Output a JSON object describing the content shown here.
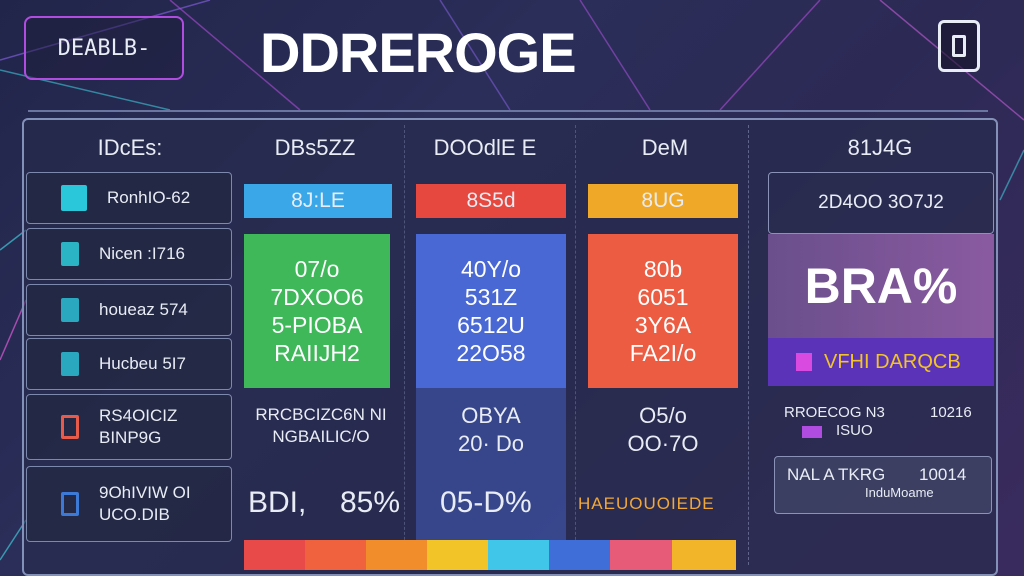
{
  "app": {
    "title": "DDREROGE",
    "top_left_button": "DEABLB-"
  },
  "table": {
    "columns": [
      "IDcEs:",
      "DBs5ZZ",
      "DOOdlE E",
      "DeM",
      "81J4G"
    ],
    "rows_left": [
      {
        "label": "RonhIO-62",
        "icon": "grid-icon",
        "icon_color": "#29c7d9"
      },
      {
        "label": "Nicen :I716",
        "icon": "bar-icon",
        "icon_color": "#2bb4c4"
      },
      {
        "label": "houeaz  574",
        "icon": "shield-icon",
        "icon_color": "#2aa8c0"
      },
      {
        "label": "Hucbeu  5I7",
        "icon": "bar-icon",
        "icon_color": "#2aa8c0"
      },
      {
        "label": "RS4OICIZ\nBINP9G",
        "icon": "square-icon",
        "icon_color": "#e85a4a"
      },
      {
        "label": "9OhIVIW OI\nUCO.DIB",
        "icon": "square-icon",
        "icon_color": "#3d7ad8"
      }
    ],
    "chips": [
      {
        "text": "8J:LE",
        "color": "#3aa7e8"
      },
      {
        "text": "8S5d",
        "color": "#e6483f"
      },
      {
        "text": "8UG",
        "color": "#f0a828"
      }
    ],
    "cards": [
      {
        "lines": [
          "07/o",
          "7DXOO6",
          "5-PIOBA",
          "RAIIJH2"
        ],
        "color": "#3fb85a"
      },
      {
        "lines": [
          "40Y/o",
          "531Z",
          "6512U",
          "22O58"
        ],
        "color": "#4a68d4"
      },
      {
        "lines": [
          "80b",
          "6051",
          "3Y6A",
          "FA2I/o"
        ],
        "color": "#ec5c42"
      }
    ],
    "mid_row": [
      "RRCBCIZC6N NI\nNGBAILIC/O",
      "OBYA\n20· Do",
      "O5/o\nOO·7O"
    ],
    "bottom_row": {
      "left_label": "BDI,",
      "left_value": "85%",
      "mid": "05-D%",
      "right": "HAEUOUOIEDE"
    },
    "right_panel": {
      "subtitle": "2D4OO 3O7J2",
      "big": "BRA%",
      "strip": "VFHI DARQCB",
      "row1_label": "RROECOG N3",
      "row1_value": "10216",
      "row1_sub": "ISUO",
      "row2_label": "NAL A TKRG",
      "row2_value": "10014",
      "row2_sub": "InduMoame"
    },
    "color_bar": [
      "#e84a4a",
      "#f0623d",
      "#f28d2c",
      "#f2c428",
      "#40c6e8",
      "#3f6ed8",
      "#e85b78",
      "#f2b52a"
    ]
  }
}
